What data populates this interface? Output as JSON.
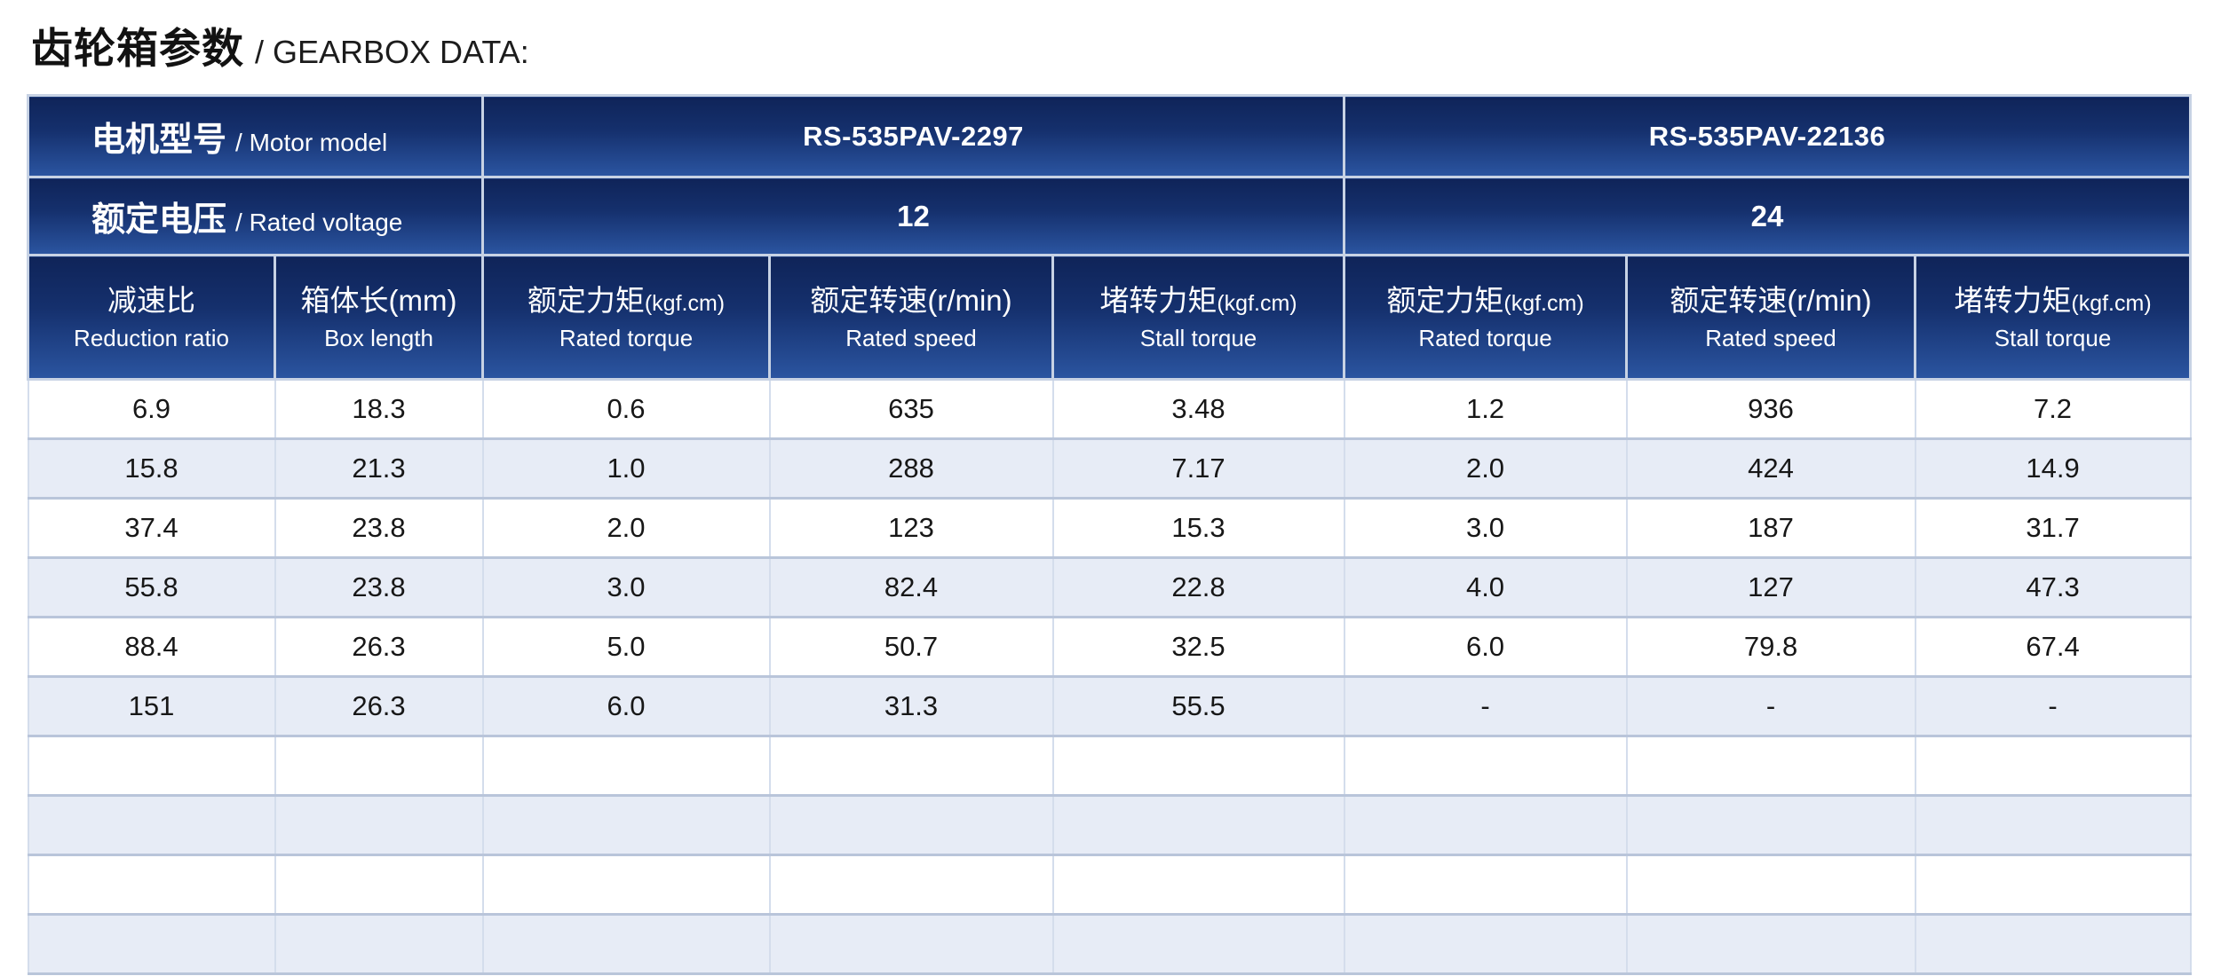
{
  "page": {
    "title_cn": "齿轮箱参数",
    "title_en": "/ GEARBOX DATA:"
  },
  "colors": {
    "header_gradient_top": "#0f2459",
    "header_gradient_bottom": "#2b55a1",
    "header_text": "#ffffff",
    "row_alt_background": "#e7ecf6",
    "grid_line": "#b9c5da",
    "body_text": "#171717"
  },
  "table": {
    "motor_model_label_cn": "电机型号",
    "motor_model_label_en": "/ Motor model",
    "rated_voltage_label_cn": "额定电压",
    "rated_voltage_label_en": "/ Rated voltage",
    "models": [
      {
        "name": "RS-535PAV-2297",
        "voltage": "12"
      },
      {
        "name": "RS-535PAV-22136",
        "voltage": "24"
      }
    ],
    "columns": [
      {
        "cn": "减速比",
        "unit": "",
        "en": "Reduction ratio"
      },
      {
        "cn": "箱体长(mm)",
        "unit": "",
        "en": "Box length"
      },
      {
        "cn": "额定力矩",
        "unit": "(kgf.cm)",
        "en": "Rated torque"
      },
      {
        "cn": "额定转速(r/min)",
        "unit": "",
        "en": "Rated speed"
      },
      {
        "cn": "堵转力矩",
        "unit": "(kgf.cm)",
        "en": "Stall torque"
      },
      {
        "cn": "额定力矩",
        "unit": "(kgf.cm)",
        "en": "Rated torque"
      },
      {
        "cn": "额定转速(r/min)",
        "unit": "",
        "en": "Rated speed"
      },
      {
        "cn": "堵转力矩",
        "unit": "(kgf.cm)",
        "en": "Stall torque"
      }
    ],
    "rows": [
      [
        "6.9",
        "18.3",
        "0.6",
        "635",
        "3.48",
        "1.2",
        "936",
        "7.2"
      ],
      [
        "15.8",
        "21.3",
        "1.0",
        "288",
        "7.17",
        "2.0",
        "424",
        "14.9"
      ],
      [
        "37.4",
        "23.8",
        "2.0",
        "123",
        "15.3",
        "3.0",
        "187",
        "31.7"
      ],
      [
        "55.8",
        "23.8",
        "3.0",
        "82.4",
        "22.8",
        "4.0",
        "127",
        "47.3"
      ],
      [
        "88.4",
        "26.3",
        "5.0",
        "50.7",
        "32.5",
        "6.0",
        "79.8",
        "67.4"
      ],
      [
        "151",
        "26.3",
        "6.0",
        "31.3",
        "55.5",
        "-",
        "-",
        "-"
      ],
      [
        "",
        "",
        "",
        "",
        "",
        "",
        "",
        ""
      ],
      [
        "",
        "",
        "",
        "",
        "",
        "",
        "",
        ""
      ],
      [
        "",
        "",
        "",
        "",
        "",
        "",
        "",
        ""
      ],
      [
        "",
        "",
        "",
        "",
        "",
        "",
        "",
        ""
      ]
    ]
  }
}
